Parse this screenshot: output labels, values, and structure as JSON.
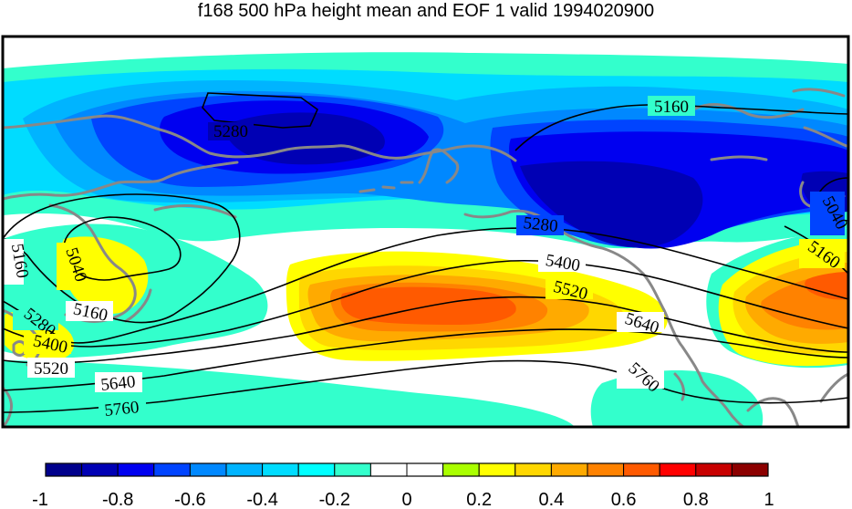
{
  "title": "f168 500 hPa height mean and EOF 1 valid 1994020900",
  "colors": {
    "levels": [
      "#00008c",
      "#0000b4",
      "#0000f0",
      "#0044ff",
      "#0088ff",
      "#00b4ff",
      "#00dcff",
      "#00ffff",
      "#33ffcc",
      "#ffffff",
      "#ffffff",
      "#aaff00",
      "#ffff00",
      "#ffd700",
      "#ffaa00",
      "#ff8200",
      "#ff5a00",
      "#ff0000",
      "#c80000",
      "#8c0000"
    ],
    "contour_line": "#000000",
    "coastline": "#888888"
  },
  "colorbar": {
    "ticks": [
      "-1",
      "-0.8",
      "-0.6",
      "-0.4",
      "-0.2",
      "0",
      "0.2",
      "0.4",
      "0.6",
      "0.8",
      "1"
    ]
  },
  "contour_labels": [
    "5160",
    "5280",
    "5160",
    "5040",
    "5160",
    "5280",
    "5400",
    "5520",
    "5640",
    "5760",
    "5280",
    "5400",
    "5520",
    "5640",
    "5760",
    "5040",
    "5160"
  ]
}
